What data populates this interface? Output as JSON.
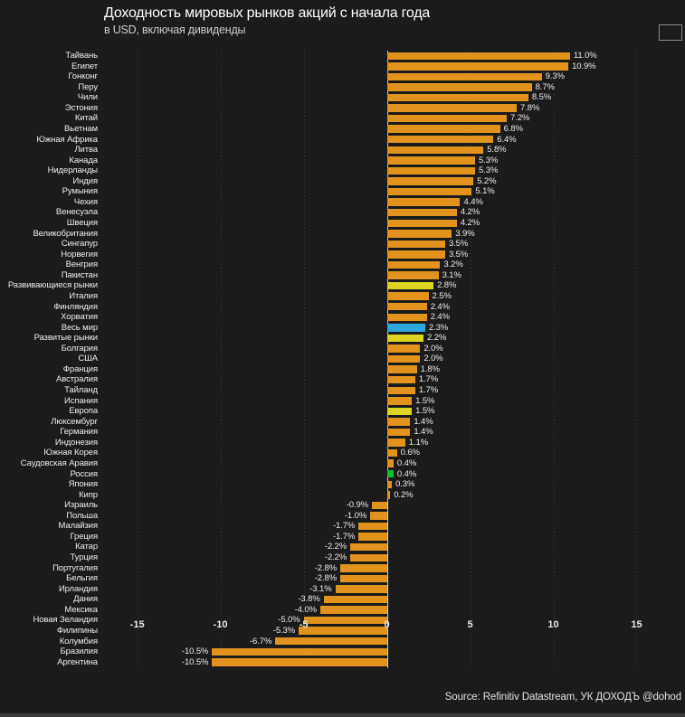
{
  "header": {
    "title": "Доходность мировых рынков акций с начала года",
    "subtitle": "в USD, включая дивиденды"
  },
  "footer": {
    "source": "Source: Refinitiv Datastream, УК ДОХОДЪ @dohod"
  },
  "chart_data": {
    "type": "bar",
    "orientation": "horizontal",
    "value_suffix": "%",
    "xlim": [
      -17.1,
      17.8
    ],
    "x_ticks": [
      -15,
      -10,
      -5,
      0,
      5,
      10,
      15
    ],
    "grid": "vertical-dotted",
    "legend_position": "none",
    "colors": {
      "default": "#E2931D",
      "highlight": "#DCD51F",
      "world": "#2CA8DB",
      "russia": "#0DC22B"
    },
    "items": [
      {
        "label": "Тайвань",
        "value": 11.0,
        "role": "default"
      },
      {
        "label": "Египет",
        "value": 10.9,
        "role": "default"
      },
      {
        "label": "Гонконг",
        "value": 9.3,
        "role": "default"
      },
      {
        "label": "Перу",
        "value": 8.7,
        "role": "default"
      },
      {
        "label": "Чили",
        "value": 8.5,
        "role": "default"
      },
      {
        "label": "Эстония",
        "value": 7.8,
        "role": "default"
      },
      {
        "label": "Китай",
        "value": 7.2,
        "role": "default"
      },
      {
        "label": "Вьетнам",
        "value": 6.8,
        "role": "default"
      },
      {
        "label": "Южная Африка",
        "value": 6.4,
        "role": "default"
      },
      {
        "label": "Литва",
        "value": 5.8,
        "role": "default"
      },
      {
        "label": "Канада",
        "value": 5.3,
        "role": "default"
      },
      {
        "label": "Нидерланды",
        "value": 5.3,
        "role": "default"
      },
      {
        "label": "Индия",
        "value": 5.2,
        "role": "default"
      },
      {
        "label": "Румыния",
        "value": 5.1,
        "role": "default"
      },
      {
        "label": "Чехия",
        "value": 4.4,
        "role": "default"
      },
      {
        "label": "Венесуэла",
        "value": 4.2,
        "role": "default"
      },
      {
        "label": "Швеция",
        "value": 4.2,
        "role": "default"
      },
      {
        "label": "Великобритания",
        "value": 3.9,
        "role": "default"
      },
      {
        "label": "Сингапур",
        "value": 3.5,
        "role": "default"
      },
      {
        "label": "Норвегия",
        "value": 3.5,
        "role": "default"
      },
      {
        "label": "Венгрия",
        "value": 3.2,
        "role": "default"
      },
      {
        "label": "Пакистан",
        "value": 3.1,
        "role": "default"
      },
      {
        "label": "Развивающиеся рынки",
        "value": 2.8,
        "role": "highlight"
      },
      {
        "label": "Италия",
        "value": 2.5,
        "role": "default"
      },
      {
        "label": "Финляндия",
        "value": 2.4,
        "role": "default"
      },
      {
        "label": "Хорватия",
        "value": 2.4,
        "role": "default"
      },
      {
        "label": "Весь мир",
        "value": 2.3,
        "role": "world"
      },
      {
        "label": "Развитые рынки",
        "value": 2.2,
        "role": "highlight"
      },
      {
        "label": "Болгария",
        "value": 2.0,
        "role": "default"
      },
      {
        "label": "США",
        "value": 2.0,
        "role": "default"
      },
      {
        "label": "Франция",
        "value": 1.8,
        "role": "default"
      },
      {
        "label": "Австралия",
        "value": 1.7,
        "role": "default"
      },
      {
        "label": "Тайланд",
        "value": 1.7,
        "role": "default"
      },
      {
        "label": "Испания",
        "value": 1.5,
        "role": "default"
      },
      {
        "label": "Европа",
        "value": 1.5,
        "role": "highlight"
      },
      {
        "label": "Люксембург",
        "value": 1.4,
        "role": "default"
      },
      {
        "label": "Германия",
        "value": 1.4,
        "role": "default"
      },
      {
        "label": "Индонезия",
        "value": 1.1,
        "role": "default"
      },
      {
        "label": "Южная Корея",
        "value": 0.6,
        "role": "default"
      },
      {
        "label": "Саудовская Аравия",
        "value": 0.4,
        "role": "default"
      },
      {
        "label": "Россия",
        "value": 0.4,
        "role": "russia"
      },
      {
        "label": "Япония",
        "value": 0.3,
        "role": "default"
      },
      {
        "label": "Кипр",
        "value": 0.2,
        "role": "default"
      },
      {
        "label": "Израиль",
        "value": -0.9,
        "role": "default"
      },
      {
        "label": "Польша",
        "value": -1.0,
        "role": "default"
      },
      {
        "label": "Малайзия",
        "value": -1.7,
        "role": "default"
      },
      {
        "label": "Греция",
        "value": -1.7,
        "role": "default"
      },
      {
        "label": "Катар",
        "value": -2.2,
        "role": "default"
      },
      {
        "label": "Турция",
        "value": -2.2,
        "role": "default"
      },
      {
        "label": "Португалия",
        "value": -2.8,
        "role": "default"
      },
      {
        "label": "Бельгия",
        "value": -2.8,
        "role": "default"
      },
      {
        "label": "Ирландия",
        "value": -3.1,
        "role": "default"
      },
      {
        "label": "Дания",
        "value": -3.8,
        "role": "default"
      },
      {
        "label": "Мексика",
        "value": -4.0,
        "role": "default"
      },
      {
        "label": "Новая Зеландия",
        "value": -5.0,
        "role": "default"
      },
      {
        "label": "Филипины",
        "value": -5.3,
        "role": "default"
      },
      {
        "label": "Колумбия",
        "value": -6.7,
        "role": "default"
      },
      {
        "label": "Бразилия",
        "value": -10.5,
        "role": "default"
      },
      {
        "label": "Аргентина",
        "value": -10.5,
        "role": "default"
      }
    ]
  }
}
